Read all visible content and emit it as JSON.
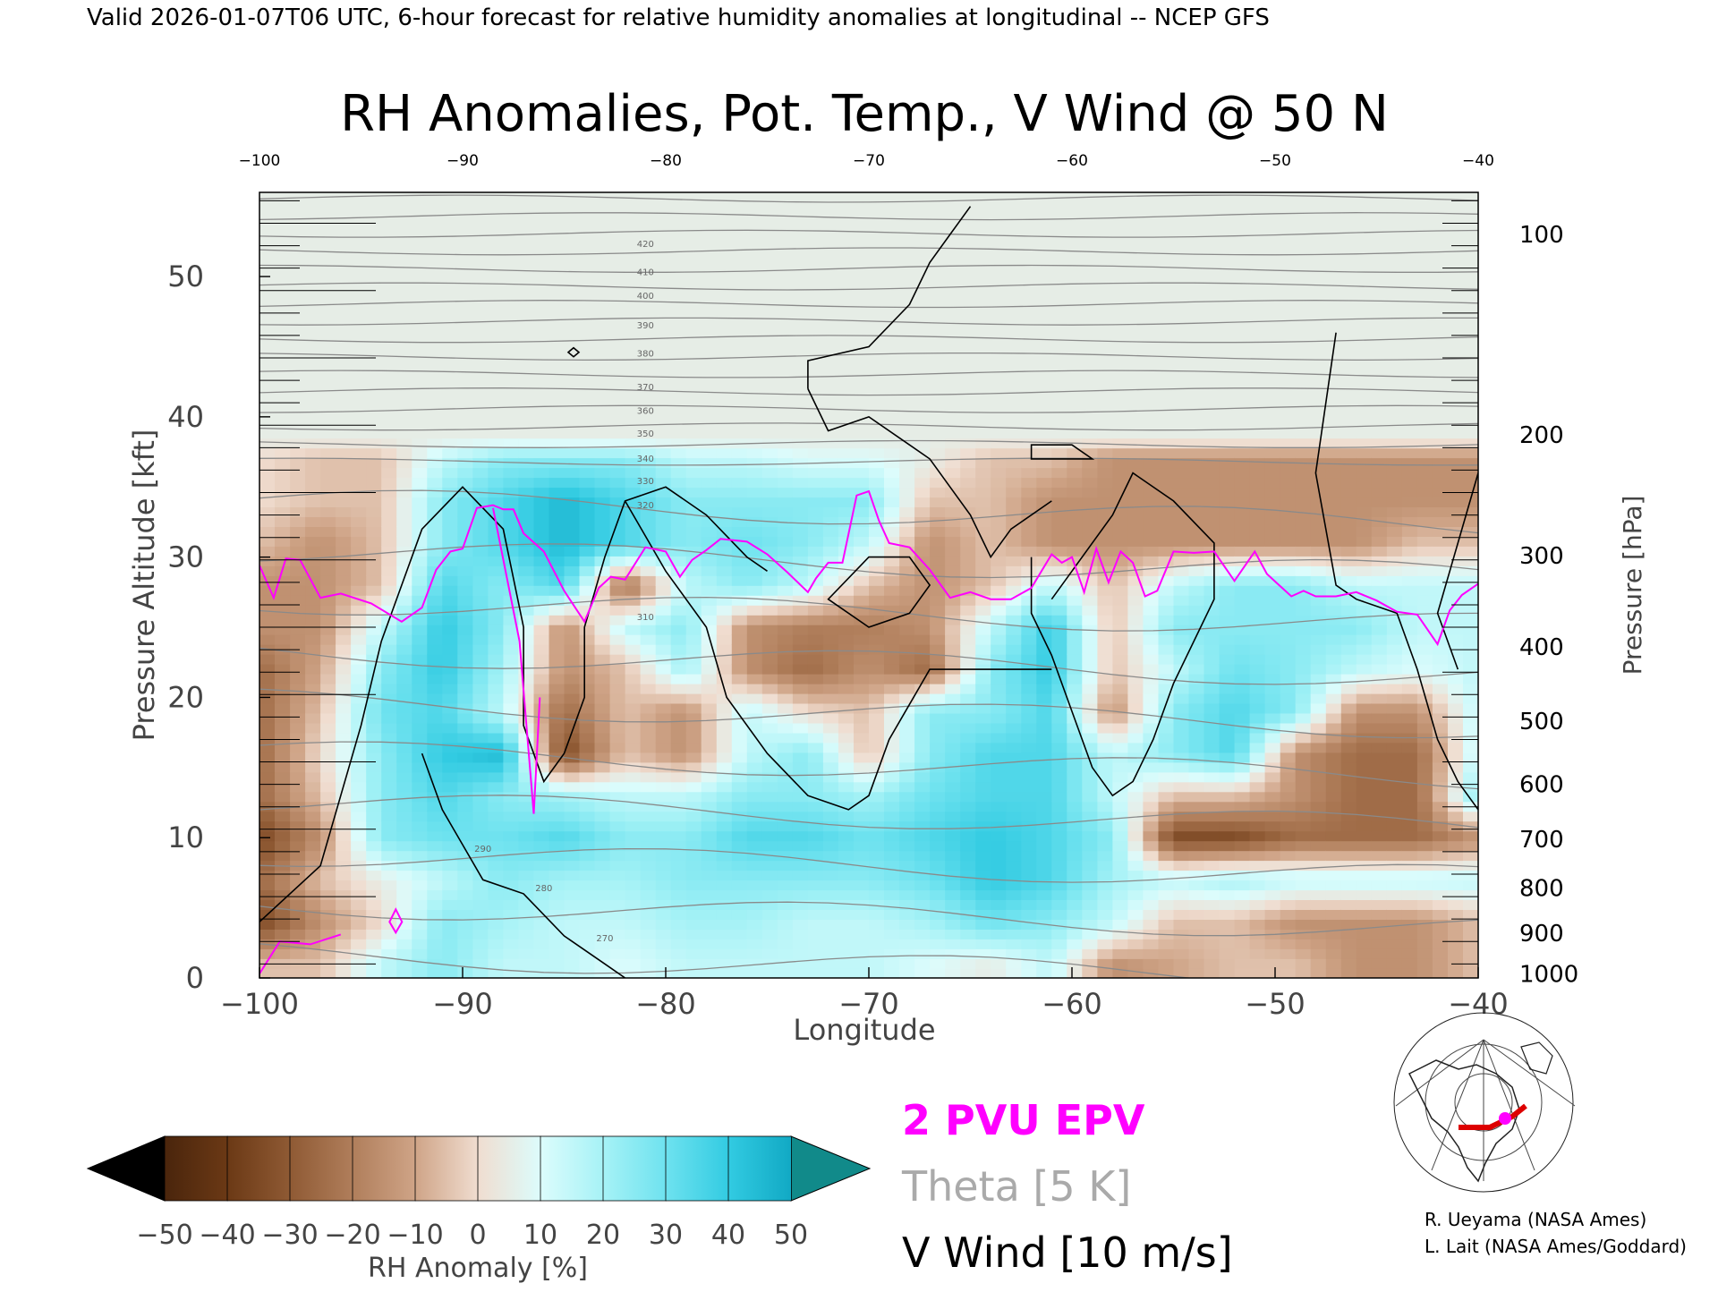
{
  "header": {
    "valid_line": "Valid 2026-01-07T06 UTC, 6-hour forecast for relative humidity anomalies at longitudinal -- NCEP GFS"
  },
  "chart_data": {
    "type": "heatmap",
    "title": "RH Anomalies, Pot. Temp., V Wind @ 50 N",
    "xlabel": "Longitude",
    "ylabel": "Pressure Altitude [kft]",
    "y2label": "Pressure [hPa]",
    "xlim": [
      -100,
      -40
    ],
    "ylim": [
      0,
      56
    ],
    "x_ticks": [
      "-100",
      "-90",
      "-80",
      "-70",
      "-60",
      "-50",
      "-40"
    ],
    "top_ticks": [
      "-100",
      "-90",
      "-80",
      "-70",
      "-60",
      "-50",
      "-40"
    ],
    "y_ticks": [
      "0",
      "10",
      "20",
      "30",
      "40",
      "50"
    ],
    "pressure_ticks": [
      {
        "label": "100",
        "kft": 53.0
      },
      {
        "label": "200",
        "kft": 38.7
      },
      {
        "label": "300",
        "kft": 30.1
      },
      {
        "label": "400",
        "kft": 23.6
      },
      {
        "label": "500",
        "kft": 18.3
      },
      {
        "label": "600",
        "kft": 13.8
      },
      {
        "label": "700",
        "kft": 9.9
      },
      {
        "label": "800",
        "kft": 6.4
      },
      {
        "label": "900",
        "kft": 3.2
      },
      {
        "label": "1000",
        "kft": 0.3
      }
    ],
    "grid": false,
    "rh_anomaly_field": {
      "longitudes": [
        -100,
        -97,
        -94,
        -91,
        -88,
        -85,
        -82,
        -79,
        -76,
        -73,
        -70,
        -67,
        -64,
        -61,
        -58,
        -55,
        -52,
        -49,
        -46,
        -43,
        -40
      ],
      "altitudes_kft": [
        1,
        4,
        7,
        10,
        13,
        16,
        19,
        22,
        25,
        28,
        31,
        34,
        37
      ],
      "values": [
        [
          -10,
          -10,
          10,
          20,
          10,
          10,
          5,
          10,
          10,
          10,
          10,
          5,
          0,
          10,
          -20,
          -15,
          -10,
          -10,
          -20,
          -20,
          -10
        ],
        [
          -40,
          -20,
          -5,
          20,
          15,
          10,
          10,
          15,
          15,
          10,
          10,
          15,
          25,
          20,
          10,
          -10,
          -10,
          -20,
          -20,
          -20,
          -10
        ],
        [
          -30,
          -10,
          0,
          10,
          20,
          15,
          15,
          20,
          20,
          20,
          20,
          25,
          35,
          30,
          15,
          10,
          15,
          10,
          10,
          10,
          10
        ],
        [
          -40,
          -20,
          20,
          25,
          25,
          30,
          20,
          20,
          30,
          30,
          25,
          30,
          35,
          30,
          20,
          -40,
          -40,
          -30,
          -30,
          -30,
          -20
        ],
        [
          -30,
          -10,
          20,
          30,
          20,
          15,
          10,
          10,
          20,
          20,
          15,
          25,
          30,
          30,
          10,
          -10,
          -10,
          -20,
          -30,
          -30,
          20
        ],
        [
          -30,
          -5,
          20,
          35,
          40,
          -40,
          -10,
          -20,
          10,
          20,
          -10,
          20,
          30,
          30,
          10,
          20,
          30,
          -20,
          -30,
          -30,
          10
        ],
        [
          -30,
          -10,
          25,
          30,
          10,
          -30,
          -10,
          -20,
          10,
          -5,
          -10,
          20,
          20,
          30,
          -20,
          20,
          30,
          20,
          -20,
          -20,
          10
        ],
        [
          -30,
          -15,
          20,
          35,
          15,
          -20,
          -10,
          15,
          -20,
          -30,
          -20,
          -30,
          20,
          35,
          -10,
          10,
          25,
          20,
          10,
          5,
          10
        ],
        [
          -20,
          -20,
          10,
          35,
          20,
          -20,
          10,
          20,
          -20,
          -25,
          -25,
          -20,
          10,
          35,
          -10,
          20,
          20,
          20,
          20,
          10,
          10
        ],
        [
          -20,
          -20,
          -10,
          30,
          20,
          30,
          -30,
          10,
          20,
          10,
          -10,
          -20,
          -10,
          10,
          -10,
          10,
          20,
          20,
          10,
          10,
          10
        ],
        [
          -10,
          -20,
          -10,
          20,
          30,
          40,
          30,
          20,
          25,
          20,
          10,
          -20,
          -10,
          -20,
          -20,
          -20,
          -20,
          -20,
          -20,
          -10,
          -10
        ],
        [
          -5,
          -10,
          -10,
          20,
          30,
          40,
          30,
          20,
          20,
          20,
          20,
          -10,
          -10,
          -20,
          -20,
          -20,
          -20,
          -20,
          -20,
          -20,
          -20
        ],
        [
          -5,
          -10,
          -10,
          10,
          20,
          20,
          20,
          10,
          10,
          5,
          5,
          0,
          -10,
          -10,
          -20,
          -20,
          -20,
          -20,
          -20,
          -20,
          -20
        ]
      ],
      "upper_value": 0
    },
    "theta_contours": {
      "interval_k": 5,
      "labels": [
        "270",
        "280",
        "290",
        "310",
        "320",
        "330",
        "340",
        "350",
        "360",
        "370",
        "380",
        "390",
        "400",
        "410",
        "420"
      ]
    },
    "pvu2_line": {
      "name": "2 PVU EPV",
      "x": [
        -100,
        -99.3,
        -98.7,
        -98,
        -97,
        -96,
        -94.5,
        -93,
        -92,
        -91.3,
        -90.6,
        -90,
        -89.3,
        -88.5,
        -88,
        -87.5,
        -87,
        -86,
        -85,
        -84,
        -83.3,
        -82.7,
        -82,
        -81,
        -80,
        -79.3,
        -78.7,
        -78,
        -77.3,
        -76,
        -75,
        -74,
        -73,
        -72.6,
        -72,
        -71.3,
        -70.6,
        -70,
        -69.5,
        -69,
        -68,
        -67,
        -66,
        -65,
        -64,
        -63,
        -62,
        -61,
        -60.5,
        -60,
        -59.4,
        -58.8,
        -58.2,
        -57.6,
        -57,
        -56.4,
        -55.8,
        -55,
        -54,
        -53,
        -52,
        -51,
        -50.4,
        -49.8,
        -49.2,
        -48.6,
        -48,
        -47,
        -46,
        -45,
        -44,
        -43,
        -42,
        -41.4,
        -40.8,
        -40
      ],
      "y": [
        29.4,
        27.1,
        29.9,
        29.8,
        27.1,
        27.4,
        26.7,
        25.4,
        26.4,
        29.1,
        30.4,
        30.6,
        33.5,
        33.7,
        33.4,
        33.4,
        31.7,
        30.4,
        27.6,
        25.4,
        27.8,
        28.6,
        28.4,
        30.7,
        30.4,
        28.6,
        29.8,
        30.5,
        31.3,
        31.1,
        30.2,
        28.9,
        27.5,
        28.5,
        29.6,
        29.6,
        34.4,
        34.7,
        32.6,
        31.0,
        30.7,
        29.1,
        27.1,
        27.5,
        27.0,
        27.0,
        27.8,
        30.2,
        29.6,
        30.0,
        27.5,
        30.6,
        28.2,
        30.4,
        29.6,
        27.2,
        27.6,
        30.4,
        30.3,
        30.4,
        28.3,
        30.4,
        28.8,
        28.0,
        27.2,
        27.6,
        27.2,
        27.2,
        27.5,
        26.9,
        26.1,
        25.9,
        23.8,
        26.2,
        27.3,
        28.1
      ]
    },
    "legend": [
      {
        "label": "2 PVU EPV",
        "color": "#ff00ff"
      },
      {
        "label": "Theta [5 K]",
        "color": "#aaaaaa"
      },
      {
        "label": "V Wind [10 m/s]",
        "color": "#000000"
      }
    ],
    "colorbar": {
      "label": "RH Anomaly [%]",
      "ticks": [
        "-50",
        "-40",
        "-30",
        "-20",
        "-10",
        "0",
        "10",
        "20",
        "30",
        "40",
        "50"
      ],
      "colors": [
        "#4a250c",
        "#6b3915",
        "#8f5a34",
        "#b07e5b",
        "#cfa487",
        "#f0ddd0",
        "#dcfcfc",
        "#a6f2f6",
        "#6ee2ef",
        "#32cbe2",
        "#11a9c4",
        "#068aa6"
      ],
      "under_color": "#000000",
      "over_color": "#118a8a"
    },
    "credits": [
      "R. Ueyama (NASA Ames)",
      "L. Lait (NASA Ames/Goddard)"
    ]
  }
}
